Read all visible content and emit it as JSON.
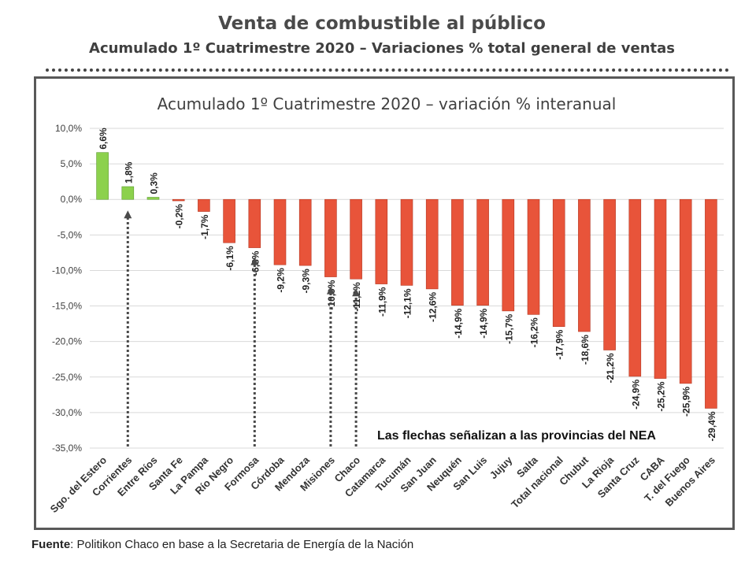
{
  "header": {
    "title": "Venta de combustible al público",
    "subtitle": "Acumulado 1º Cuatrimestre 2020 – Variaciones % total general de ventas"
  },
  "footer": {
    "source_label": "Fuente",
    "source_text": ": Politikon Chaco en base a la Secretaria de Energía de la Nación"
  },
  "colors": {
    "positive": "#8CD14D",
    "negative": "#E8543A",
    "arrow": "#4a4a4a",
    "grid": "#d9d9d9"
  },
  "chart_data": {
    "type": "bar",
    "title": "Acumulado 1º Cuatrimestre 2020 – variación % interanual",
    "xlabel": "",
    "ylabel": "",
    "ylim": [
      -35,
      10
    ],
    "yticks": [
      10,
      5,
      0,
      -5,
      -10,
      -15,
      -20,
      -25,
      -30,
      -35
    ],
    "ytick_labels": [
      "10,0%",
      "5,0%",
      "0,0%",
      "-5,0%",
      "-10,0%",
      "-15,0%",
      "-20,0%",
      "-25,0%",
      "-30,0%",
      "-35,0%"
    ],
    "grid": true,
    "categories": [
      "Sgo. del Estero",
      "Corrientes",
      "Entre Ríos",
      "Santa Fe",
      "La Pampa",
      "Río Negro",
      "Formosa",
      "Córdoba",
      "Mendoza",
      "Misiones",
      "Chaco",
      "Catamarca",
      "Tucumán",
      "San Juan",
      "Neuquén",
      "San Luis",
      "Jujuy",
      "Salta",
      "Total nacional",
      "Chubut",
      "La Rioja",
      "Santa Cruz",
      "CABA",
      "T. del Fuego",
      "Buenos Aires"
    ],
    "values": [
      6.6,
      1.8,
      0.3,
      -0.2,
      -1.7,
      -6.1,
      -6.8,
      -9.2,
      -9.3,
      -10.9,
      -11.2,
      -11.9,
      -12.1,
      -12.6,
      -14.9,
      -14.9,
      -15.7,
      -16.2,
      -17.9,
      -18.6,
      -21.2,
      -24.9,
      -25.2,
      -25.9,
      -29.4
    ],
    "value_labels": [
      "6,6%",
      "1,8%",
      "0,3%",
      "-0,2%",
      "-1,7%",
      "-6,1%",
      "-6,8%",
      "-9,2%",
      "-9,3%",
      "-10,9%",
      "-11,2%",
      "-11,9%",
      "-12,1%",
      "-12,6%",
      "-14,9%",
      "-14,9%",
      "-15,7%",
      "-16,2%",
      "-17,9%",
      "-18,6%",
      "-21,2%",
      "-24,9%",
      "-25,2%",
      "-25,9%",
      "-29,4%"
    ],
    "arrow_categories": [
      "Corrientes",
      "Formosa",
      "Misiones",
      "Chaco"
    ],
    "annotation": "Las flechas señalizan a las provincias del NEA"
  }
}
